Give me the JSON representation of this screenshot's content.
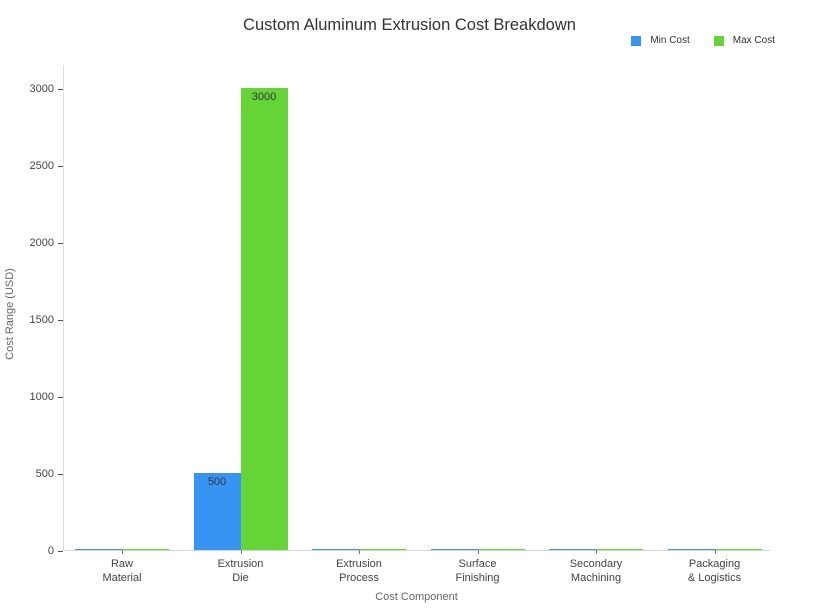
{
  "chart_data": {
    "type": "bar",
    "title": "Custom Aluminum Extrusion Cost Breakdown",
    "xlabel": "Cost Component",
    "ylabel": "Cost Range (USD)",
    "categories": [
      "Raw Material",
      "Extrusion Die",
      "Extrusion Process",
      "Surface Finishing",
      "Secondary Machining",
      "Packaging & Logistics"
    ],
    "category_label_lines": [
      [
        "Raw",
        "Material"
      ],
      [
        "Extrusion",
        "Die"
      ],
      [
        "Extrusion",
        "Process"
      ],
      [
        "Surface",
        "Finishing"
      ],
      [
        "Secondary",
        "Machining"
      ],
      [
        "Packaging",
        "& Logistics"
      ]
    ],
    "series": [
      {
        "name": "Min Cost",
        "color": "#3894f2",
        "values": [
          2,
          500,
          2,
          2,
          2,
          2
        ],
        "bar_labels": [
          "",
          "500",
          "",
          "",
          "",
          ""
        ]
      },
      {
        "name": "Max Cost",
        "color": "#65d436",
        "values": [
          5,
          3000,
          5,
          5,
          6,
          5
        ],
        "bar_labels": [
          "",
          "3000",
          "",
          "",
          "",
          ""
        ]
      }
    ],
    "yticks": [
      0,
      500,
      1000,
      1500,
      2000,
      2500,
      3000
    ],
    "ylim": [
      0,
      3150
    ],
    "grid": false,
    "legend_position": "top-right",
    "background_color": "#ffffff"
  }
}
